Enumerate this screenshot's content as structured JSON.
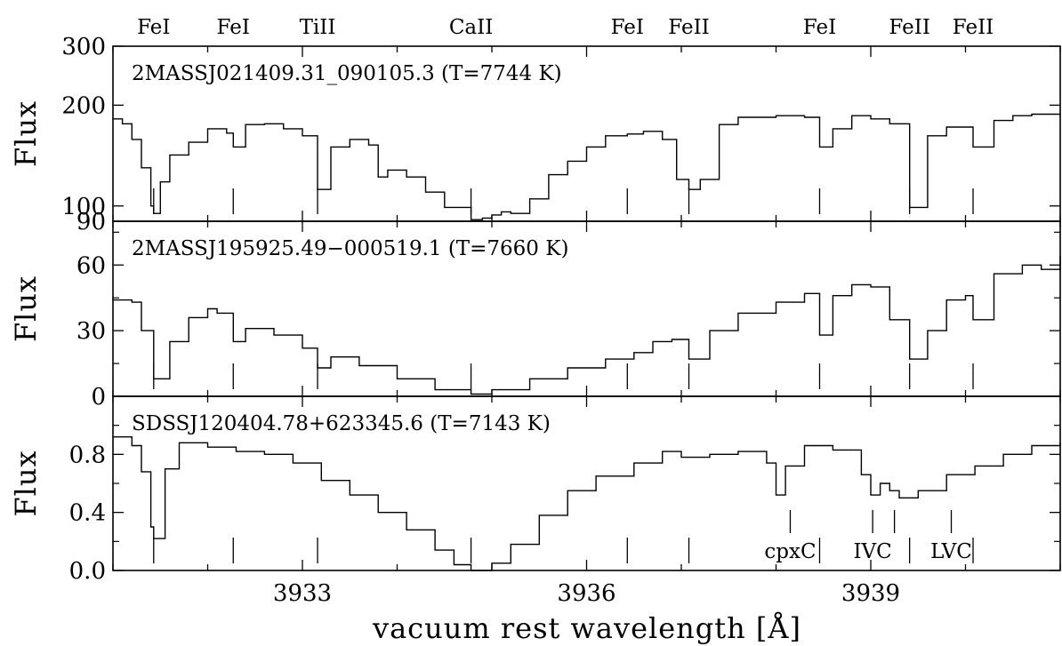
{
  "chart_data": {
    "type": "line",
    "xlabel": "vacuum rest wavelength [Å]",
    "xlim": [
      3931.0,
      3941.0
    ],
    "xticks": [
      3933,
      3936,
      3939
    ],
    "xtick_labels": [
      "3933",
      "3936",
      "3939"
    ],
    "lines": [
      {
        "label": "FeI",
        "x": 3931.43
      },
      {
        "label": "FeI",
        "x": 3932.27
      },
      {
        "label": "TiII",
        "x": 3933.16
      },
      {
        "label": "CaII",
        "x": 3934.78
      },
      {
        "label": "FeI",
        "x": 3936.43
      },
      {
        "label": "FeII",
        "x": 3937.08
      },
      {
        "label": "FeI",
        "x": 3938.46
      },
      {
        "label": "FeII",
        "x": 3939.41
      },
      {
        "label": "FeII",
        "x": 3940.08
      }
    ],
    "panels": [
      {
        "star": "2MASSJ021409.31_090105.3 (T=7744 K)",
        "ylabel": "Flux",
        "scale": "log",
        "ylim": [
          90,
          300
        ],
        "yticks": [
          90,
          100,
          200,
          300
        ],
        "x": [
          3931.0,
          3931.1,
          3931.2,
          3931.3,
          3931.4,
          3931.43,
          3931.5,
          3931.6,
          3931.8,
          3932.0,
          3932.2,
          3932.27,
          3932.4,
          3932.6,
          3932.8,
          3933.0,
          3933.16,
          3933.3,
          3933.5,
          3933.7,
          3933.8,
          3933.9,
          3934.1,
          3934.3,
          3934.5,
          3934.78,
          3934.9,
          3935.0,
          3935.1,
          3935.2,
          3935.4,
          3935.6,
          3935.8,
          3936.0,
          3936.2,
          3936.43,
          3936.6,
          3936.8,
          3936.95,
          3937.08,
          3937.2,
          3937.4,
          3937.6,
          3938.0,
          3938.3,
          3938.46,
          3938.6,
          3938.8,
          3939.0,
          3939.2,
          3939.41,
          3939.6,
          3939.8,
          3940.08,
          3940.3,
          3940.5,
          3940.7,
          3941.0
        ],
        "y": [
          182,
          176,
          158,
          130,
          100,
          95,
          118,
          142,
          155,
          170,
          165,
          150,
          175,
          176,
          170,
          162,
          112,
          150,
          158,
          152,
          122,
          128,
          122,
          110,
          99,
          91,
          92,
          94,
          96,
          95,
          105,
          124,
          136,
          150,
          162,
          164,
          167,
          158,
          120,
          112,
          120,
          175,
          184,
          186,
          184,
          150,
          170,
          186,
          182,
          176,
          99,
          162,
          172,
          150,
          180,
          186,
          188,
          188
        ],
        "markers": [
          3931.43,
          3932.27,
          3933.16,
          3934.78,
          3936.43,
          3937.08,
          3938.46,
          3939.41,
          3940.08
        ],
        "annotations": []
      },
      {
        "star": "2MASSJ195925.49−000519.1 (T=7660 K)",
        "ylabel": "Flux",
        "scale": "linear",
        "ylim": [
          0,
          80
        ],
        "yticks": [
          0,
          30,
          60
        ],
        "x": [
          3931.0,
          3931.2,
          3931.3,
          3931.43,
          3931.6,
          3931.8,
          3932.0,
          3932.1,
          3932.27,
          3932.4,
          3932.7,
          3933.0,
          3933.16,
          3933.3,
          3933.6,
          3934.0,
          3934.4,
          3934.78,
          3935.0,
          3935.4,
          3935.8,
          3936.2,
          3936.5,
          3936.7,
          3936.9,
          3937.08,
          3937.3,
          3937.6,
          3938.0,
          3938.3,
          3938.46,
          3938.6,
          3938.8,
          3939.0,
          3939.2,
          3939.41,
          3939.6,
          3939.8,
          3940.0,
          3940.08,
          3940.3,
          3940.6,
          3940.8,
          3941.0
        ],
        "y": [
          44,
          43,
          30,
          8,
          25,
          36,
          40,
          38,
          25,
          31,
          28,
          22,
          13,
          18,
          14,
          8,
          3,
          1,
          3,
          8,
          13,
          17,
          20,
          25,
          26,
          17,
          30,
          38,
          43,
          47,
          28,
          46,
          51,
          50,
          35,
          17,
          30,
          44,
          46,
          35,
          56,
          60,
          58,
          64
        ],
        "markers": [
          3931.43,
          3932.27,
          3933.16,
          3934.78,
          3936.43,
          3937.08,
          3938.46,
          3939.41,
          3940.08
        ],
        "annotations": []
      },
      {
        "star": "SDSSJ120404.78+623345.6 (T=7143 K)",
        "ylabel": "Flux",
        "scale": "linear",
        "ylim": [
          0,
          1.2
        ],
        "yticks": [
          0.0,
          0.4,
          0.8
        ],
        "ytick_labels": [
          "0.0",
          "0.4",
          "0.8"
        ],
        "x": [
          3931.0,
          3931.2,
          3931.3,
          3931.4,
          3931.43,
          3931.55,
          3931.7,
          3932.0,
          3932.3,
          3932.6,
          3932.9,
          3933.2,
          3933.5,
          3933.8,
          3934.1,
          3934.4,
          3934.6,
          3934.78,
          3935.0,
          3935.2,
          3935.5,
          3935.8,
          3936.1,
          3936.5,
          3936.8,
          3937.0,
          3937.3,
          3937.6,
          3937.9,
          3938.0,
          3938.1,
          3938.3,
          3938.6,
          3938.9,
          3939.0,
          3939.1,
          3939.2,
          3939.3,
          3939.5,
          3939.8,
          3940.1,
          3940.4,
          3940.7,
          3941.0
        ],
        "y": [
          0.92,
          0.86,
          0.68,
          0.3,
          0.22,
          0.7,
          0.88,
          0.85,
          0.82,
          0.8,
          0.74,
          0.62,
          0.52,
          0.4,
          0.28,
          0.14,
          0.04,
          0.0,
          0.05,
          0.18,
          0.38,
          0.55,
          0.65,
          0.74,
          0.82,
          0.78,
          0.8,
          0.82,
          0.74,
          0.52,
          0.72,
          0.86,
          0.83,
          0.66,
          0.52,
          0.6,
          0.55,
          0.5,
          0.55,
          0.66,
          0.72,
          0.8,
          0.86,
          0.88
        ],
        "markers": [
          3931.43,
          3932.27,
          3933.16,
          3934.78,
          3936.43,
          3937.08,
          3938.46,
          3939.41,
          3940.08
        ],
        "annotations": [
          {
            "label": "cpxC",
            "x": 3938.15
          },
          {
            "label": "IVC",
            "x": 3939.02
          },
          {
            "label": "",
            "x": 3939.25
          },
          {
            "label": "LVC",
            "x": 3939.85
          }
        ]
      }
    ]
  }
}
